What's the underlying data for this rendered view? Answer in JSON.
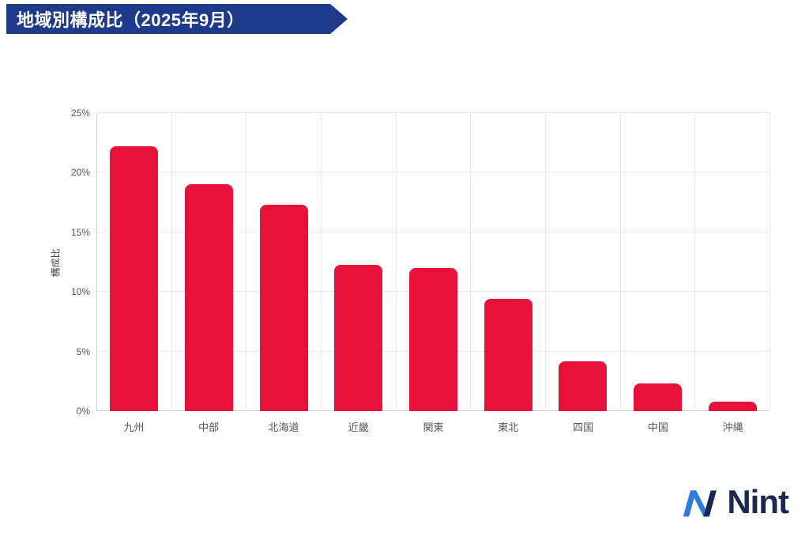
{
  "header": {
    "title": "地域別構成比（2025年9月）",
    "banner_color": "#1e3a8a",
    "text_color": "#ffffff"
  },
  "chart_data": {
    "type": "bar",
    "title": "地域別構成比（2025年9月）",
    "categories": [
      "九州",
      "中部",
      "北海道",
      "近畿",
      "関東",
      "東北",
      "四国",
      "中国",
      "沖縄"
    ],
    "values": [
      22.2,
      19.0,
      17.3,
      12.3,
      12.0,
      9.4,
      4.2,
      2.3,
      0.8
    ],
    "unit": "%",
    "xlabel": "",
    "ylabel": "構成比",
    "ylim": [
      0,
      25
    ],
    "ytick_step": 5,
    "ytick_labels": [
      "0%",
      "5%",
      "10%",
      "15%",
      "20%",
      "25%"
    ],
    "bar_color": "#e8113a",
    "grid": true,
    "legend": false
  },
  "logo": {
    "text": "Nint",
    "text_color": "#1b2653",
    "icon_color_light": "#2e7ce0",
    "icon_color_dark": "#1b2653"
  }
}
